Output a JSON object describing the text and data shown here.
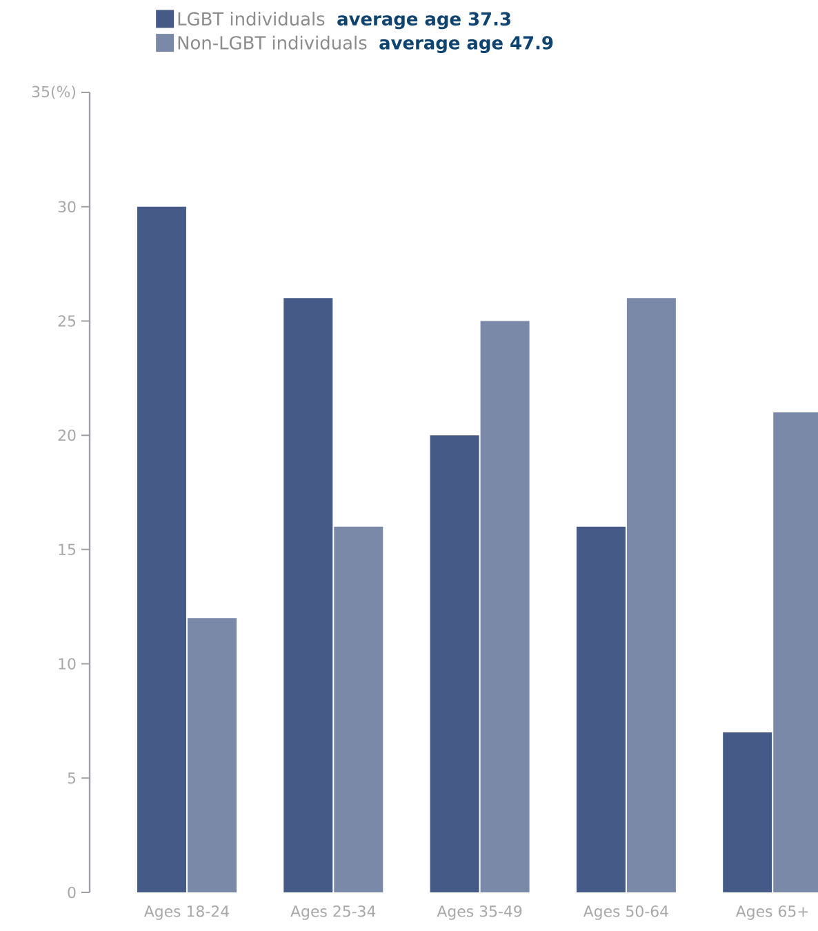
{
  "chart_data": {
    "type": "bar",
    "categories": [
      "Ages 18-24",
      "Ages 25-34",
      "Ages 35-49",
      "Ages 50-64",
      "Ages 65+"
    ],
    "series": [
      {
        "name": "LGBT individuals",
        "color": "#465a88",
        "values": [
          30,
          26,
          20,
          16,
          7
        ]
      },
      {
        "name": "Non-LGBT individuals",
        "color": "#7a89a8",
        "values": [
          12,
          16,
          25,
          26,
          21
        ]
      }
    ],
    "annotations": [
      "average age 37.3",
      "average age 47.9"
    ],
    "ylim": [
      0,
      35
    ],
    "yticks": [
      0,
      5,
      10,
      15,
      20,
      25,
      30,
      {
        "value": 35,
        "label": "35(%)"
      }
    ],
    "grid": false,
    "legend": "top"
  }
}
